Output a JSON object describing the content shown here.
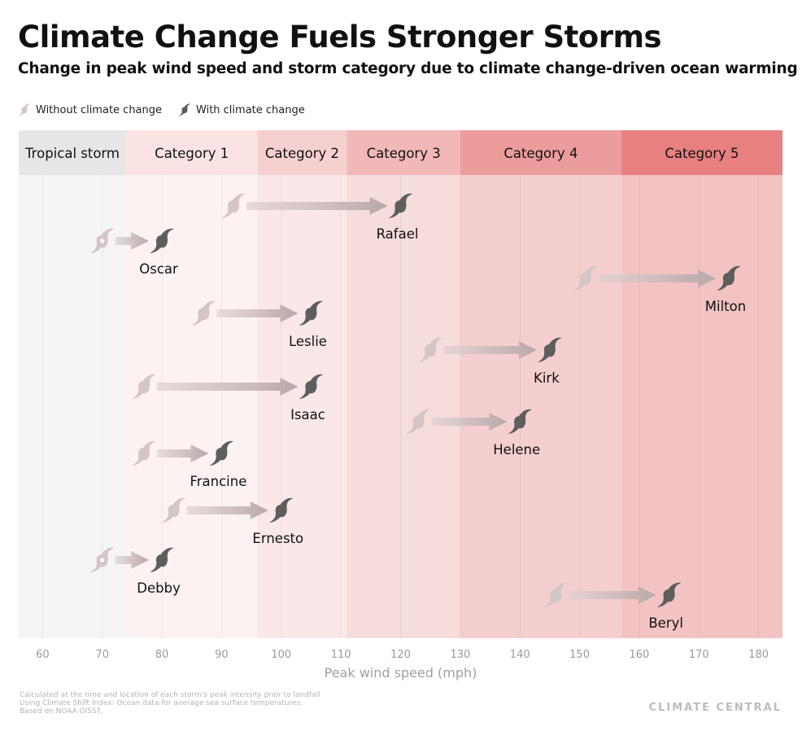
{
  "title": "Climate Change Fuels Stronger Storms",
  "subtitle": "Change in peak wind speed and storm category due to climate change-driven ocean warming",
  "legend": {
    "without": "Without climate change",
    "with": "With climate change"
  },
  "footer": [
    "Calculated at the time and location of each storm's peak intensity prior to landfall",
    "Using Climate Shift Index: Ocean data for average sea surface temperatures.",
    "Based on NOAA OISST."
  ],
  "brand": "CLIMATE CENTRAL",
  "colors": {
    "without": "#d4c6c6",
    "with": "#5e5e5e",
    "arrow": "#c9b9b9"
  },
  "chart_data": {
    "type": "dumbbell-arrow",
    "xlabel": "Peak wind speed (mph)",
    "xlim": [
      56,
      184
    ],
    "xticks": [
      60,
      70,
      80,
      90,
      100,
      110,
      120,
      130,
      140,
      150,
      160,
      170,
      180
    ],
    "grid": true,
    "bands": [
      {
        "label": "Tropical storm",
        "from": 56,
        "to": 74,
        "header": "#e6e6e6",
        "fill": "#f5f5f5"
      },
      {
        "label": "Category 1",
        "from": 74,
        "to": 96,
        "header": "#fbe3e3",
        "fill": "#fdf2f2"
      },
      {
        "label": "Category 2",
        "from": 96,
        "to": 111,
        "header": "#f6cfcf",
        "fill": "#fae8e8"
      },
      {
        "label": "Category 3",
        "from": 111,
        "to": 130,
        "header": "#f2b8b8",
        "fill": "#f7dcdc"
      },
      {
        "label": "Category 4",
        "from": 130,
        "to": 157,
        "header": "#ec9c9c",
        "fill": "#f5cfcf"
      },
      {
        "label": "Category 5",
        "from": 157,
        "to": 184,
        "header": "#e88080",
        "fill": "#f3c3c3"
      }
    ],
    "storms": [
      {
        "name": "Rafael",
        "without": 92,
        "with": 120
      },
      {
        "name": "Oscar",
        "without": 70,
        "with": 80
      },
      {
        "name": "Milton",
        "without": 151,
        "with": 175
      },
      {
        "name": "Leslie",
        "without": 87,
        "with": 105
      },
      {
        "name": "Kirk",
        "without": 125,
        "with": 145
      },
      {
        "name": "Isaac",
        "without": 77,
        "with": 105
      },
      {
        "name": "Helene",
        "without": 123,
        "with": 140
      },
      {
        "name": "Francine",
        "without": 77,
        "with": 90
      },
      {
        "name": "Ernesto",
        "without": 82,
        "with": 100
      },
      {
        "name": "Debby",
        "without": 70,
        "with": 80
      },
      {
        "name": "Beryl",
        "without": 146,
        "with": 165
      }
    ]
  }
}
